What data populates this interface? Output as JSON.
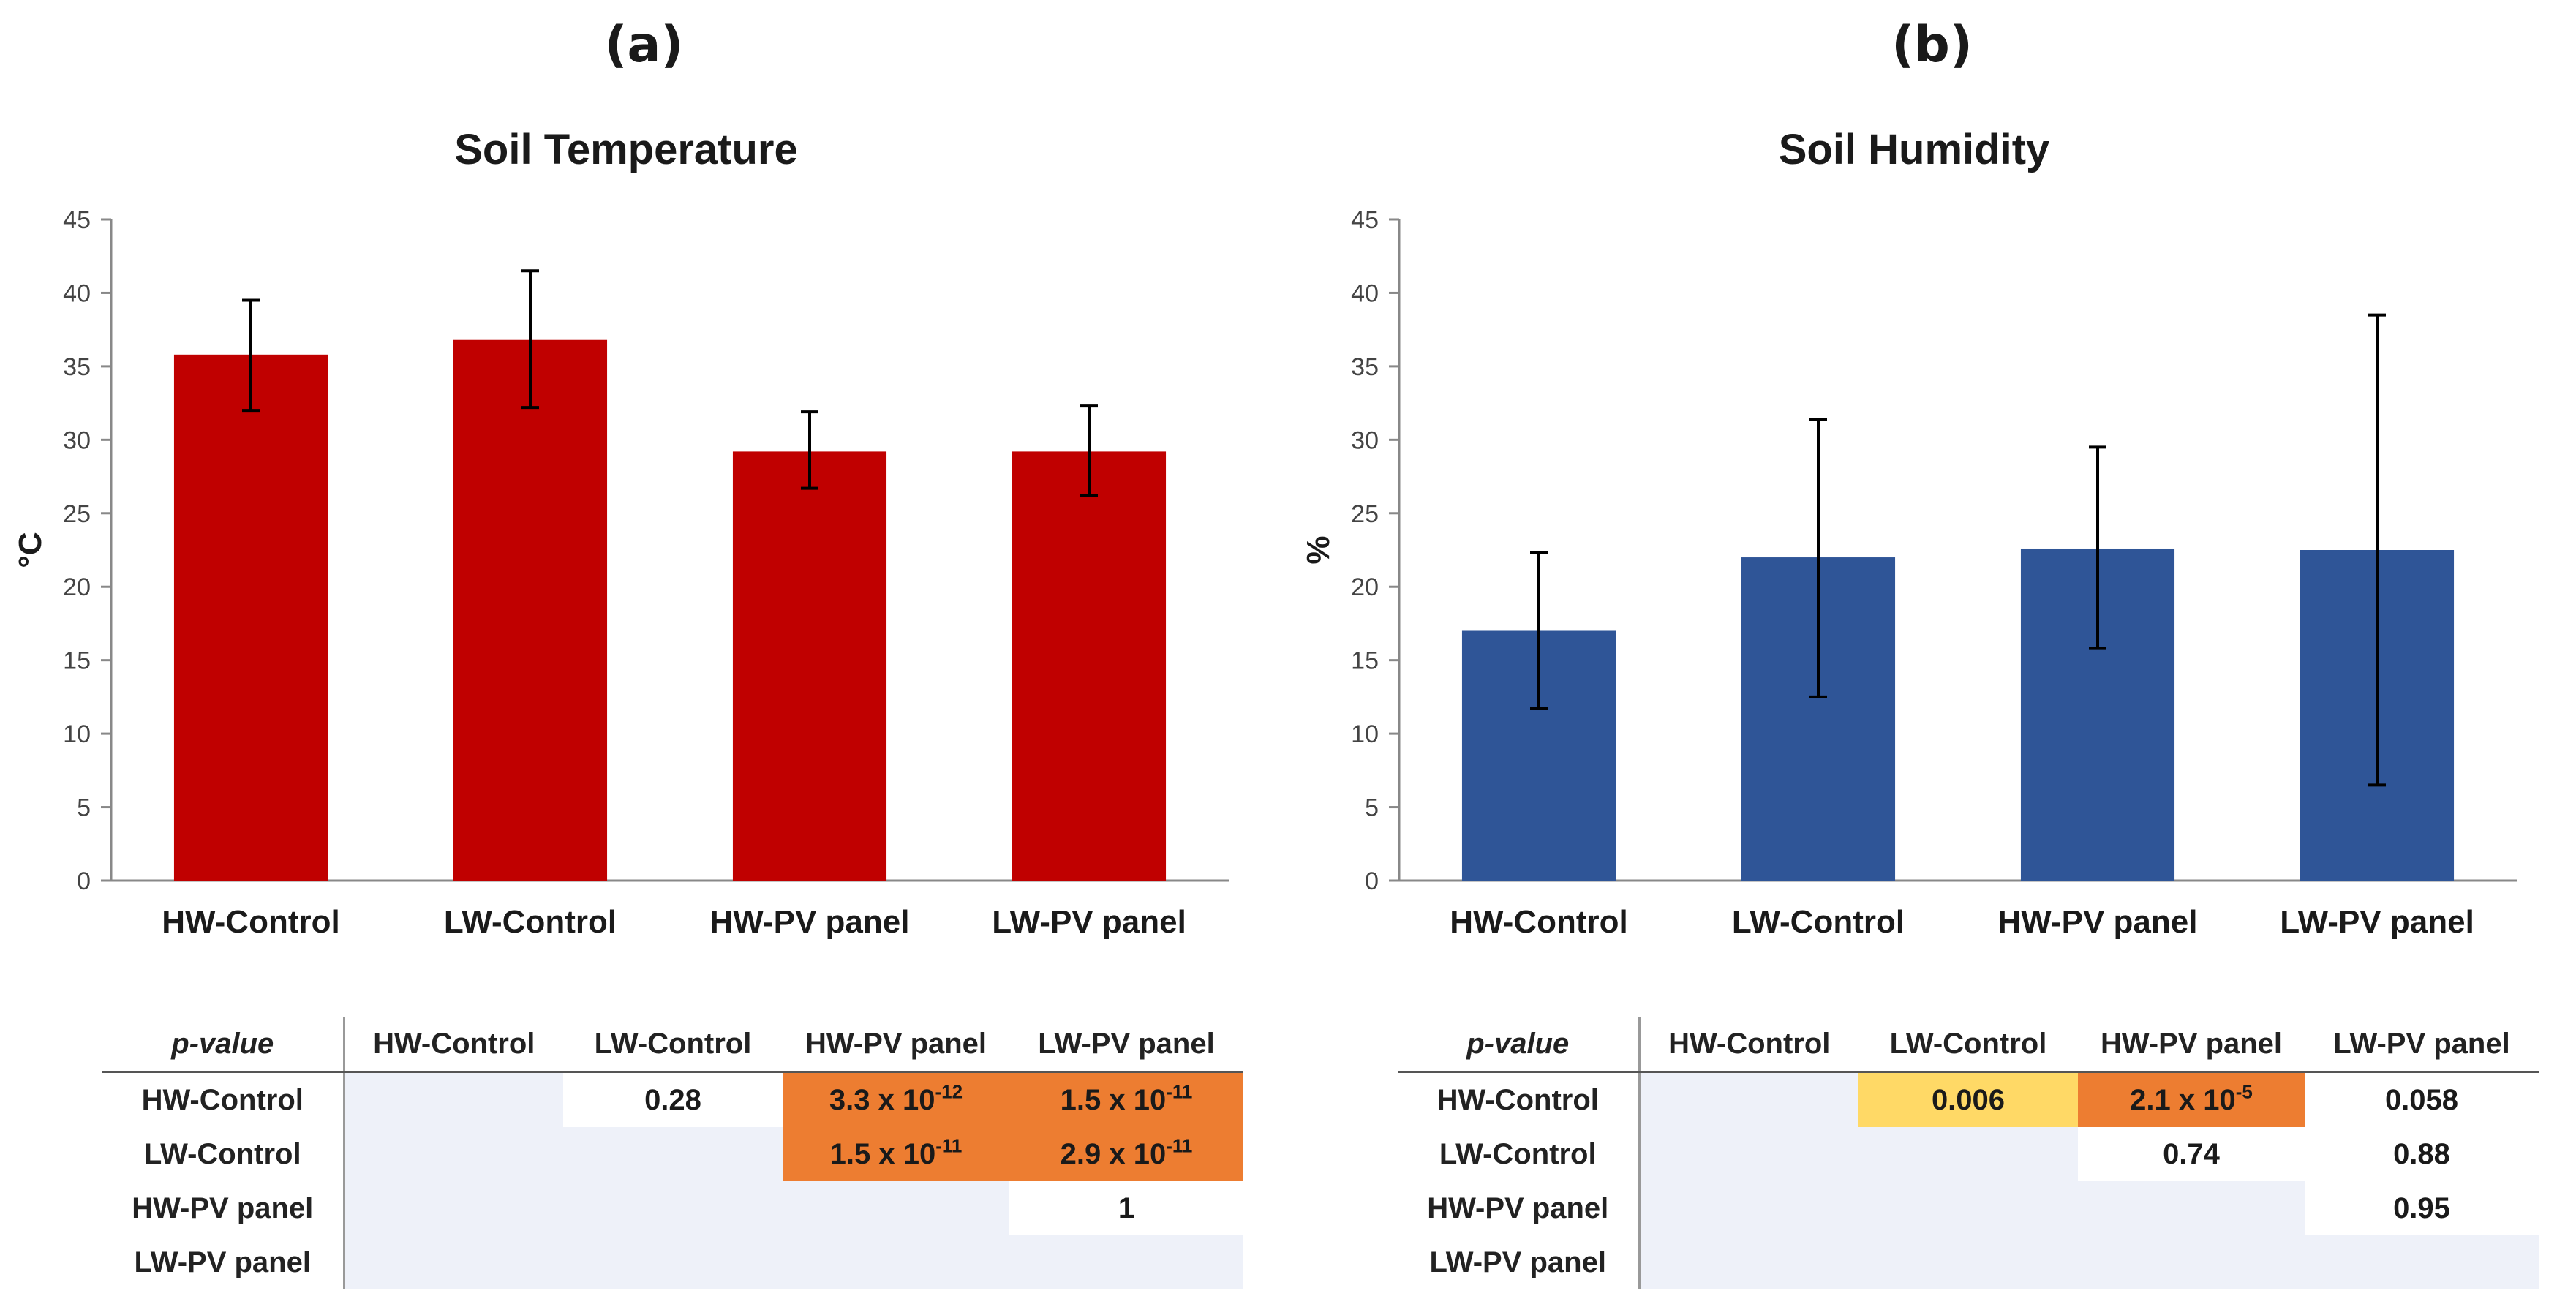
{
  "panels": [
    {
      "label": "(a)",
      "bar_color": "#c00000",
      "table": {
        "corner_label": "p-value",
        "columns": [
          "HW-Control",
          "LW-Control",
          "HW-PV panel",
          "LW-PV panel"
        ],
        "rows": [
          {
            "label": "HW-Control",
            "cells": [
              {
                "text": "",
                "style": "empty"
              },
              {
                "text": "0.28",
                "style": "plain"
              },
              {
                "text": "3.3 x 10",
                "sup": "-12",
                "style": "sig-high"
              },
              {
                "text": "1.5 x 10",
                "sup": "-11",
                "style": "sig-high"
              }
            ]
          },
          {
            "label": "LW-Control",
            "cells": [
              {
                "text": "",
                "style": "empty"
              },
              {
                "text": "",
                "style": "empty"
              },
              {
                "text": "1.5 x 10",
                "sup": "-11",
                "style": "sig-high"
              },
              {
                "text": "2.9 x 10",
                "sup": "-11",
                "style": "sig-high"
              }
            ]
          },
          {
            "label": "HW-PV panel",
            "cells": [
              {
                "text": "",
                "style": "empty"
              },
              {
                "text": "",
                "style": "empty"
              },
              {
                "text": "",
                "style": "empty"
              },
              {
                "text": "1",
                "style": "plain"
              }
            ]
          },
          {
            "label": "LW-PV panel",
            "cells": [
              {
                "text": "",
                "style": "empty"
              },
              {
                "text": "",
                "style": "empty"
              },
              {
                "text": "",
                "style": "empty"
              },
              {
                "text": "",
                "style": "empty"
              }
            ]
          }
        ]
      }
    },
    {
      "label": "(b)",
      "bar_color": "#2f5597",
      "table": {
        "corner_label": "p-value",
        "columns": [
          "HW-Control",
          "LW-Control",
          "HW-PV panel",
          "LW-PV panel"
        ],
        "rows": [
          {
            "label": "HW-Control",
            "cells": [
              {
                "text": "",
                "style": "empty"
              },
              {
                "text": "0.006",
                "style": "sig-mid"
              },
              {
                "text": "2.1 x 10",
                "sup": "-5",
                "style": "sig-high"
              },
              {
                "text": "0.058",
                "style": "plain"
              }
            ]
          },
          {
            "label": "LW-Control",
            "cells": [
              {
                "text": "",
                "style": "empty"
              },
              {
                "text": "",
                "style": "empty"
              },
              {
                "text": "0.74",
                "style": "plain"
              },
              {
                "text": "0.88",
                "style": "plain"
              }
            ]
          },
          {
            "label": "HW-PV panel",
            "cells": [
              {
                "text": "",
                "style": "empty"
              },
              {
                "text": "",
                "style": "empty"
              },
              {
                "text": "",
                "style": "empty"
              },
              {
                "text": "0.95",
                "style": "plain"
              }
            ]
          },
          {
            "label": "LW-PV panel",
            "cells": [
              {
                "text": "",
                "style": "empty"
              },
              {
                "text": "",
                "style": "empty"
              },
              {
                "text": "",
                "style": "empty"
              },
              {
                "text": "",
                "style": "empty"
              }
            ]
          }
        ]
      }
    }
  ],
  "chart_data": [
    {
      "type": "bar",
      "title": "Soil Temperature",
      "categories": [
        "HW-Control",
        "LW-Control",
        "HW-PV panel",
        "LW-PV panel"
      ],
      "values": [
        35.8,
        36.8,
        29.2,
        29.2
      ],
      "error_low": [
        32.0,
        32.2,
        26.7,
        26.2
      ],
      "error_high": [
        39.5,
        41.5,
        31.9,
        32.3
      ],
      "xlabel": "",
      "ylabel": "°C",
      "ylim": [
        0,
        45
      ],
      "yticks": [
        0,
        5,
        10,
        15,
        20,
        25,
        30,
        35,
        40,
        45
      ],
      "grid": false
    },
    {
      "type": "bar",
      "title": "Soil Humidity",
      "categories": [
        "HW-Control",
        "LW-Control",
        "HW-PV panel",
        "LW-PV panel"
      ],
      "values": [
        17.0,
        22.0,
        22.6,
        22.5
      ],
      "error_low": [
        11.7,
        12.5,
        15.8,
        6.5
      ],
      "error_high": [
        22.3,
        31.4,
        29.5,
        38.5
      ],
      "xlabel": "",
      "ylabel": "%",
      "ylim": [
        0,
        45
      ],
      "yticks": [
        0,
        5,
        10,
        15,
        20,
        25,
        30,
        35,
        40,
        45
      ],
      "grid": false
    }
  ]
}
